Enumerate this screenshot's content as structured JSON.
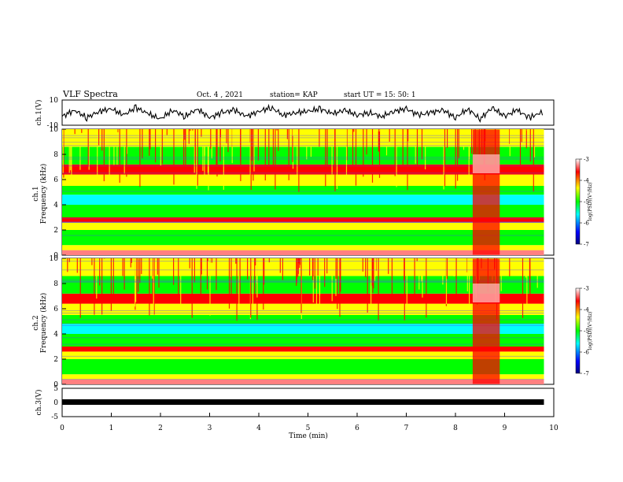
{
  "header": {
    "title": "VLF Spectra",
    "date": "Oct. 4 , 2021",
    "station": "station= KAP",
    "start": "start UT = 15: 50: 1"
  },
  "axes": {
    "ch1_waveform_ylabel": "ch.1(V)",
    "ch1_spec_ylabel_1": "ch.1",
    "ch1_spec_ylabel_2": "Frequency (kHz)",
    "ch2_spec_ylabel_1": "ch.2",
    "ch2_spec_ylabel_2": "Frequency (kHz)",
    "ch3_ylabel": "ch.3(V)",
    "xlabel": "Time (min)",
    "colorbar_label_1": "log(PSD)(V",
    "colorbar_label_2": "/Hz)",
    "colorbar_label_sup": "2"
  },
  "colors": {
    "spectrogram_scale": [
      "#000080",
      "#0000ff",
      "#00ffff",
      "#00ff00",
      "#ffff00",
      "#ff0000",
      "#ffffff"
    ],
    "waveform": "#000000"
  },
  "chart_data": [
    {
      "type": "line",
      "title": "VLF Spectra",
      "ylabel": "ch.1(V)",
      "ylim": [
        -10,
        10
      ],
      "xlim": [
        0,
        10
      ],
      "yticks": [
        -10,
        10
      ],
      "series": [
        {
          "x": [
            0,
            0.25,
            0.5,
            0.75,
            1.0,
            1.25,
            1.5,
            1.75,
            2.0,
            2.25,
            2.5,
            2.75,
            3.0,
            3.25,
            3.5,
            3.75,
            4.0,
            4.25,
            4.5,
            4.75,
            5.0,
            5.25,
            5.5,
            5.75,
            6.0,
            6.25,
            6.5,
            6.75,
            7.0,
            7.25,
            7.5,
            7.75,
            8.0,
            8.25,
            8.5,
            8.75,
            9.0,
            9.25,
            9.5,
            9.8
          ],
          "values": [
            -3,
            2,
            -4,
            1,
            3,
            -2,
            4,
            -1,
            -5,
            2,
            -3,
            3,
            -4,
            0,
            2,
            -3,
            1,
            4,
            -2,
            0,
            1,
            3,
            -1,
            2,
            -2,
            0,
            -3,
            1,
            3,
            -2,
            0,
            2,
            -4,
            3,
            -5,
            4,
            -3,
            2,
            -4,
            1
          ]
        }
      ]
    },
    {
      "type": "heatmap",
      "ylabel": "Frequency (kHz)",
      "xlim": [
        0,
        10
      ],
      "ylim": [
        0,
        10
      ],
      "yticks": [
        0,
        2,
        4,
        6,
        8,
        10
      ],
      "colorbar": {
        "label": "log(PSD)(V2/Hz)",
        "range": [
          -7,
          -3
        ],
        "ticks": [
          -3,
          -4,
          -5,
          -6,
          -7
        ]
      }
    },
    {
      "type": "heatmap",
      "ylabel": "Frequency (kHz)",
      "xlim": [
        0,
        10
      ],
      "ylim": [
        0,
        10
      ],
      "yticks": [
        0,
        2,
        4,
        6,
        8,
        10
      ],
      "colorbar": {
        "label": "log(PSD)(V2/Hz)",
        "range": [
          -7,
          -3
        ],
        "ticks": [
          -3,
          -4,
          -5,
          -6,
          -7
        ]
      }
    },
    {
      "type": "line",
      "ylabel": "ch.3(V)",
      "ylim": [
        -5,
        5
      ],
      "xlim": [
        0,
        10
      ],
      "yticks": [
        -5,
        0,
        5
      ],
      "xticks": [
        0,
        1,
        2,
        3,
        4,
        5,
        6,
        7,
        8,
        9,
        10
      ],
      "xlabel": "Time (min)",
      "series": [
        {
          "x": [
            0,
            9.8
          ],
          "values": [
            0,
            0
          ]
        }
      ]
    }
  ]
}
